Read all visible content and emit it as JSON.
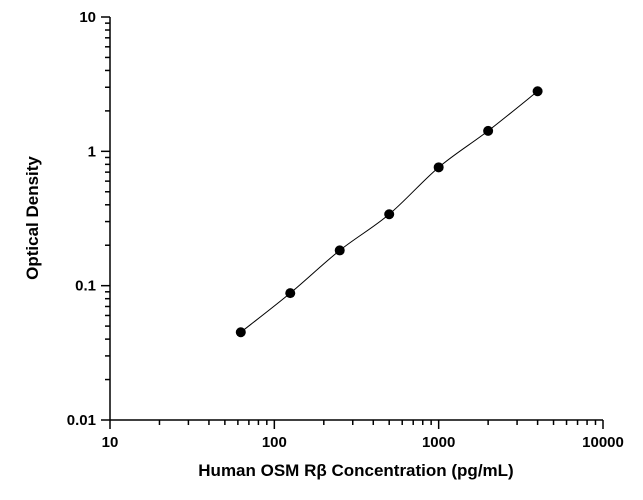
{
  "chart_data": {
    "type": "scatter",
    "title": "",
    "xlabel": "Human OSM Rβ Concentration (pg/mL)",
    "ylabel": "Optical Density",
    "xscale": "log",
    "yscale": "log",
    "xlim": [
      10,
      10000
    ],
    "ylim": [
      0.01,
      10
    ],
    "x_tick_labels": [
      "10",
      "100",
      "1000",
      "10000"
    ],
    "y_tick_labels": [
      "0.01",
      "0.1",
      "1",
      "10"
    ],
    "grid": false,
    "legend": "none",
    "series": [
      {
        "x": [
          62.5,
          125,
          250,
          500,
          1000,
          2000,
          4000
        ],
        "y": [
          0.045,
          0.088,
          0.183,
          0.34,
          0.76,
          1.42,
          2.8
        ],
        "marker": "filled-circle",
        "fit_curve": true
      }
    ],
    "colors": {
      "marker": "#000000",
      "line": "#000000"
    }
  }
}
